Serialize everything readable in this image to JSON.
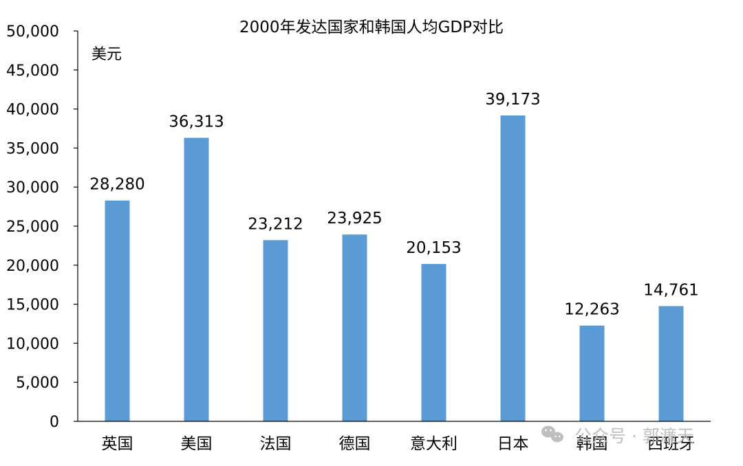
{
  "chart_data": {
    "type": "bar",
    "title": "2000年发达国家和韩国人均GDP对比",
    "ylabel": "美元",
    "xlabel": "",
    "categories": [
      "英国",
      "美国",
      "法国",
      "德国",
      "意大利",
      "日本",
      "韩国",
      "西班牙"
    ],
    "values": [
      28280,
      36313,
      23212,
      23925,
      20153,
      39173,
      12263,
      14761
    ],
    "data_labels": [
      "28,280",
      "36,313",
      "23,212",
      "23,925",
      "20,153",
      "39,173",
      "12,263",
      "14,761"
    ],
    "y_ticks": [
      0,
      5000,
      10000,
      15000,
      20000,
      25000,
      30000,
      35000,
      40000,
      45000,
      50000
    ],
    "y_tick_labels": [
      "0",
      "5,000",
      "10,000",
      "15,000",
      "20,000",
      "25,000",
      "30,000",
      "35,000",
      "40,000",
      "45,000",
      "50,000"
    ],
    "ylim": [
      0,
      50000
    ],
    "grid": false,
    "legend": "none",
    "bar_color": "#5B9BD5"
  },
  "watermark": {
    "text": "公众号 · 郭濂天",
    "icon": "wechat-icon"
  }
}
